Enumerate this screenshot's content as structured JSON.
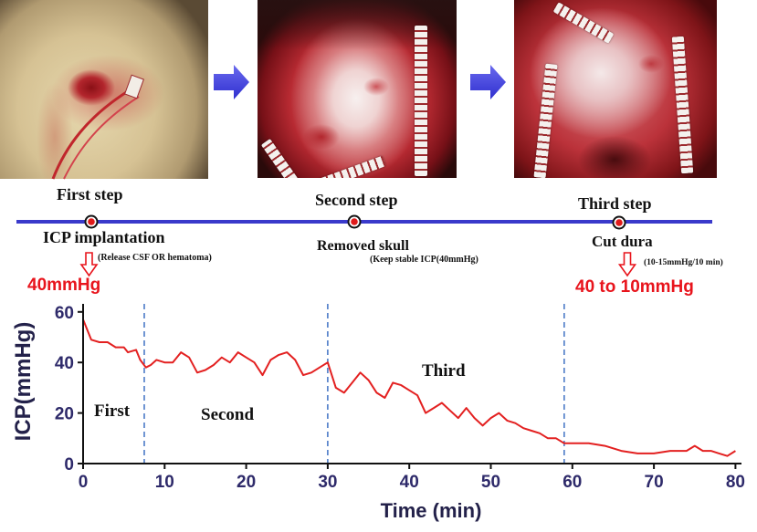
{
  "timeline": {
    "steps": [
      {
        "title": "First step",
        "action": "ICP implantation",
        "note": "(Release CSF OR hematoma)",
        "pressure": "40mmHg"
      },
      {
        "title": "Second step",
        "action": "Removed skull",
        "note": "(Keep stable ICP(40mmHg)"
      },
      {
        "title": "Third step",
        "action": "Cut dura",
        "note": "(10-15mmHg/10 min)",
        "pressure": "40 to 10mmHg"
      }
    ]
  },
  "colors": {
    "timeline": "#3a3acb",
    "flow_arrow": "#3d3de0",
    "pressure_text": "#e8141c",
    "series": "#e32020",
    "phase_line": "#3f72c4",
    "tick_text": "#2e2a6a"
  },
  "chart_data": {
    "type": "line",
    "xlabel": "Time (min)",
    "ylabel": "ICP(mmHg)",
    "xlim": [
      0,
      80
    ],
    "ylim": [
      0,
      60
    ],
    "x_ticks": [
      0,
      10,
      20,
      30,
      40,
      50,
      60,
      70,
      80
    ],
    "y_ticks": [
      0,
      20,
      40,
      60
    ],
    "grid": false,
    "legend": "none",
    "phase_boundaries": [
      7.5,
      30,
      59
    ],
    "annotations": [
      "First",
      "Second",
      "Third"
    ],
    "series": [
      {
        "color": "#e32020",
        "x": [
          0,
          1,
          2,
          3,
          4,
          5,
          5.5,
          6.5,
          7,
          7.7,
          8.3,
          9,
          10,
          11,
          12,
          13,
          14,
          15,
          16,
          17,
          18,
          19,
          20,
          21,
          22,
          23,
          24,
          25,
          26,
          27,
          28,
          29,
          30,
          31,
          32,
          33,
          34,
          35,
          36,
          37,
          38,
          39,
          40,
          41,
          42,
          43,
          44,
          45,
          46,
          47,
          48,
          49,
          50,
          51,
          52,
          53,
          54,
          55,
          56,
          57,
          58,
          59,
          60,
          62,
          64,
          66,
          68,
          70,
          72,
          74,
          75,
          76,
          77,
          78,
          79,
          80
        ],
        "y": [
          57,
          49,
          48,
          48,
          46,
          46,
          44,
          45,
          41,
          38,
          39,
          41,
          40,
          40,
          44,
          42,
          36,
          37,
          39,
          42,
          40,
          44,
          42,
          40,
          35,
          41,
          43,
          44,
          41,
          35,
          36,
          38,
          40,
          30,
          28,
          32,
          36,
          33,
          28,
          26,
          32,
          31,
          29,
          27,
          20,
          22,
          24,
          21,
          18,
          22,
          18,
          15,
          18,
          20,
          17,
          16,
          14,
          13,
          12,
          10,
          10,
          8,
          8,
          8,
          7,
          5,
          4,
          4,
          5,
          5,
          7,
          5,
          5,
          4,
          3,
          5
        ]
      }
    ]
  }
}
